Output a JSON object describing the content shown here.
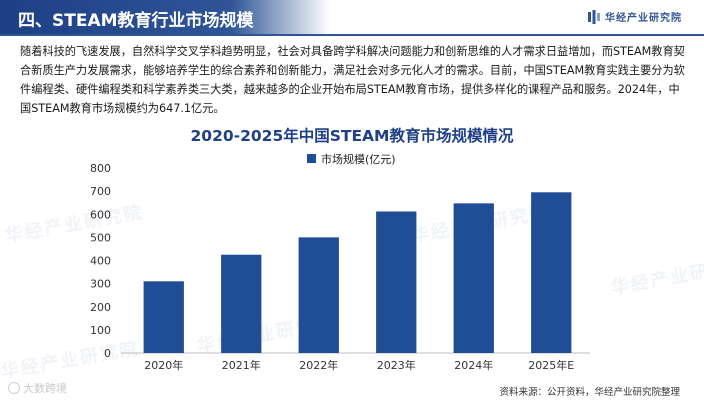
{
  "header": {
    "title": "四、STEAM教育行业市场规模",
    "brand": "华经产业研究院"
  },
  "intro": "随着科技的飞速发展，自然科学交叉学科趋势明显，社会对具备跨学科解决问题能力和创新思维的人才需求日益增加，而STEAM教育契合新质生产力发展需求，能够培养学生的综合素养和创新能力，满足社会对多元化人才的需求。目前，中国STEAM教育实践主要分为软件编程类、硬件编程类和科学素养类三大类，越来越多的企业开始布局STEAM教育市场，提供多样化的课程产品和服务。2024年，中国STEAM教育市场规模约为647.1亿元。",
  "chart_data": {
    "type": "bar",
    "title": "2020-2025年中国STEAM教育市场规模情况",
    "categories": [
      "2020年",
      "2021年",
      "2022年",
      "2023年",
      "2024年",
      "2025年E"
    ],
    "series": [
      {
        "name": "市场规模(亿元)",
        "values": [
          310,
          425,
          500,
          612,
          647.1,
          695
        ]
      }
    ],
    "ylim": [
      0,
      800
    ],
    "yticks": [
      0,
      100,
      200,
      300,
      400,
      500,
      600,
      700,
      800
    ],
    "legend": "top-center",
    "grid": false,
    "bar_color": "#1f4e96"
  },
  "source": "资料来源：公开资料，华经产业研究院整理",
  "watermark_text": "华经产业研究院",
  "stamp_text": "大数跨境"
}
